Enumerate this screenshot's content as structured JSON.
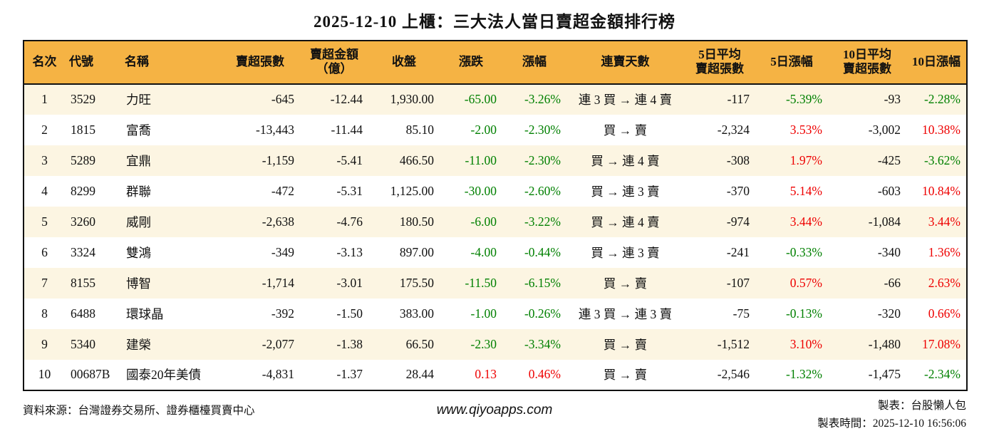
{
  "title": "2025-12-10 上櫃：三大法人當日賣超金額排行榜",
  "colors": {
    "header_bg": "#F5B344",
    "row_alt_bg": "#FCF5E2",
    "up_red": "#EE0000",
    "down_green": "#008000",
    "border_ink": "#111111"
  },
  "table": {
    "headers": [
      "名次",
      "代號",
      "名稱",
      "賣超張數",
      "賣超金額\n（億）",
      "收盤",
      "漲跌",
      "漲幅",
      "連賣天數",
      "5日平均\n賣超張數",
      "5日漲幅",
      "10日平均\n賣超張數",
      "10日漲幅"
    ],
    "rows": [
      {
        "cells": [
          {
            "t": "1"
          },
          {
            "t": "3529"
          },
          {
            "t": "力旺"
          },
          {
            "t": "-645"
          },
          {
            "t": "-12.44"
          },
          {
            "t": "1,930.00"
          },
          {
            "t": "-65.00",
            "c": "green"
          },
          {
            "t": "-3.26%",
            "c": "green"
          },
          {
            "t": "連 3 買 → 連 4 賣"
          },
          {
            "t": "-117"
          },
          {
            "t": "-5.39%",
            "c": "green"
          },
          {
            "t": "-93"
          },
          {
            "t": "-2.28%",
            "c": "green"
          }
        ]
      },
      {
        "cells": [
          {
            "t": "2"
          },
          {
            "t": "1815"
          },
          {
            "t": "富喬"
          },
          {
            "t": "-13,443"
          },
          {
            "t": "-11.44"
          },
          {
            "t": "85.10"
          },
          {
            "t": "-2.00",
            "c": "green"
          },
          {
            "t": "-2.30%",
            "c": "green"
          },
          {
            "t": "買 → 賣"
          },
          {
            "t": "-2,324"
          },
          {
            "t": "3.53%",
            "c": "red"
          },
          {
            "t": "-3,002"
          },
          {
            "t": "10.38%",
            "c": "red"
          }
        ]
      },
      {
        "cells": [
          {
            "t": "3"
          },
          {
            "t": "5289"
          },
          {
            "t": "宜鼎"
          },
          {
            "t": "-1,159"
          },
          {
            "t": "-5.41"
          },
          {
            "t": "466.50"
          },
          {
            "t": "-11.00",
            "c": "green"
          },
          {
            "t": "-2.30%",
            "c": "green"
          },
          {
            "t": "買 → 連 4 賣"
          },
          {
            "t": "-308"
          },
          {
            "t": "1.97%",
            "c": "red"
          },
          {
            "t": "-425"
          },
          {
            "t": "-3.62%",
            "c": "green"
          }
        ]
      },
      {
        "cells": [
          {
            "t": "4"
          },
          {
            "t": "8299"
          },
          {
            "t": "群聯"
          },
          {
            "t": "-472"
          },
          {
            "t": "-5.31"
          },
          {
            "t": "1,125.00"
          },
          {
            "t": "-30.00",
            "c": "green"
          },
          {
            "t": "-2.60%",
            "c": "green"
          },
          {
            "t": "買 → 連 3 賣"
          },
          {
            "t": "-370"
          },
          {
            "t": "5.14%",
            "c": "red"
          },
          {
            "t": "-603"
          },
          {
            "t": "10.84%",
            "c": "red"
          }
        ]
      },
      {
        "cells": [
          {
            "t": "5"
          },
          {
            "t": "3260"
          },
          {
            "t": "威剛"
          },
          {
            "t": "-2,638"
          },
          {
            "t": "-4.76"
          },
          {
            "t": "180.50"
          },
          {
            "t": "-6.00",
            "c": "green"
          },
          {
            "t": "-3.22%",
            "c": "green"
          },
          {
            "t": "買 → 連 4 賣"
          },
          {
            "t": "-974"
          },
          {
            "t": "3.44%",
            "c": "red"
          },
          {
            "t": "-1,084"
          },
          {
            "t": "3.44%",
            "c": "red"
          }
        ]
      },
      {
        "cells": [
          {
            "t": "6"
          },
          {
            "t": "3324"
          },
          {
            "t": "雙鴻"
          },
          {
            "t": "-349"
          },
          {
            "t": "-3.13"
          },
          {
            "t": "897.00"
          },
          {
            "t": "-4.00",
            "c": "green"
          },
          {
            "t": "-0.44%",
            "c": "green"
          },
          {
            "t": "買 → 連 3 賣"
          },
          {
            "t": "-241"
          },
          {
            "t": "-0.33%",
            "c": "green"
          },
          {
            "t": "-340"
          },
          {
            "t": "1.36%",
            "c": "red"
          }
        ]
      },
      {
        "cells": [
          {
            "t": "7"
          },
          {
            "t": "8155"
          },
          {
            "t": "博智"
          },
          {
            "t": "-1,714"
          },
          {
            "t": "-3.01"
          },
          {
            "t": "175.50"
          },
          {
            "t": "-11.50",
            "c": "green"
          },
          {
            "t": "-6.15%",
            "c": "green"
          },
          {
            "t": "買 → 賣"
          },
          {
            "t": "-107"
          },
          {
            "t": "0.57%",
            "c": "red"
          },
          {
            "t": "-66"
          },
          {
            "t": "2.63%",
            "c": "red"
          }
        ]
      },
      {
        "cells": [
          {
            "t": "8"
          },
          {
            "t": "6488"
          },
          {
            "t": "環球晶"
          },
          {
            "t": "-392"
          },
          {
            "t": "-1.50"
          },
          {
            "t": "383.00"
          },
          {
            "t": "-1.00",
            "c": "green"
          },
          {
            "t": "-0.26%",
            "c": "green"
          },
          {
            "t": "連 3 買 → 連 3 賣"
          },
          {
            "t": "-75"
          },
          {
            "t": "-0.13%",
            "c": "green"
          },
          {
            "t": "-320"
          },
          {
            "t": "0.66%",
            "c": "red"
          }
        ]
      },
      {
        "cells": [
          {
            "t": "9"
          },
          {
            "t": "5340"
          },
          {
            "t": "建榮"
          },
          {
            "t": "-2,077"
          },
          {
            "t": "-1.38"
          },
          {
            "t": "66.50"
          },
          {
            "t": "-2.30",
            "c": "green"
          },
          {
            "t": "-3.34%",
            "c": "green"
          },
          {
            "t": "買 → 賣"
          },
          {
            "t": "-1,512"
          },
          {
            "t": "3.10%",
            "c": "red"
          },
          {
            "t": "-1,480"
          },
          {
            "t": "17.08%",
            "c": "red"
          }
        ]
      },
      {
        "cells": [
          {
            "t": "10"
          },
          {
            "t": "00687B"
          },
          {
            "t": "國泰20年美債"
          },
          {
            "t": "-4,831"
          },
          {
            "t": "-1.37"
          },
          {
            "t": "28.44"
          },
          {
            "t": "0.13",
            "c": "red"
          },
          {
            "t": "0.46%",
            "c": "red"
          },
          {
            "t": "買 → 賣"
          },
          {
            "t": "-2,546"
          },
          {
            "t": "-1.32%",
            "c": "green"
          },
          {
            "t": "-1,475"
          },
          {
            "t": "-2.34%",
            "c": "green"
          }
        ]
      }
    ]
  },
  "footer": {
    "source": "資料來源：台灣證券交易所、證券櫃檯買賣中心",
    "website": "www.qiyoapps.com",
    "made_by": "製表：台股懶人包",
    "made_time": "製表時間：2025-12-10 16:56:06"
  }
}
